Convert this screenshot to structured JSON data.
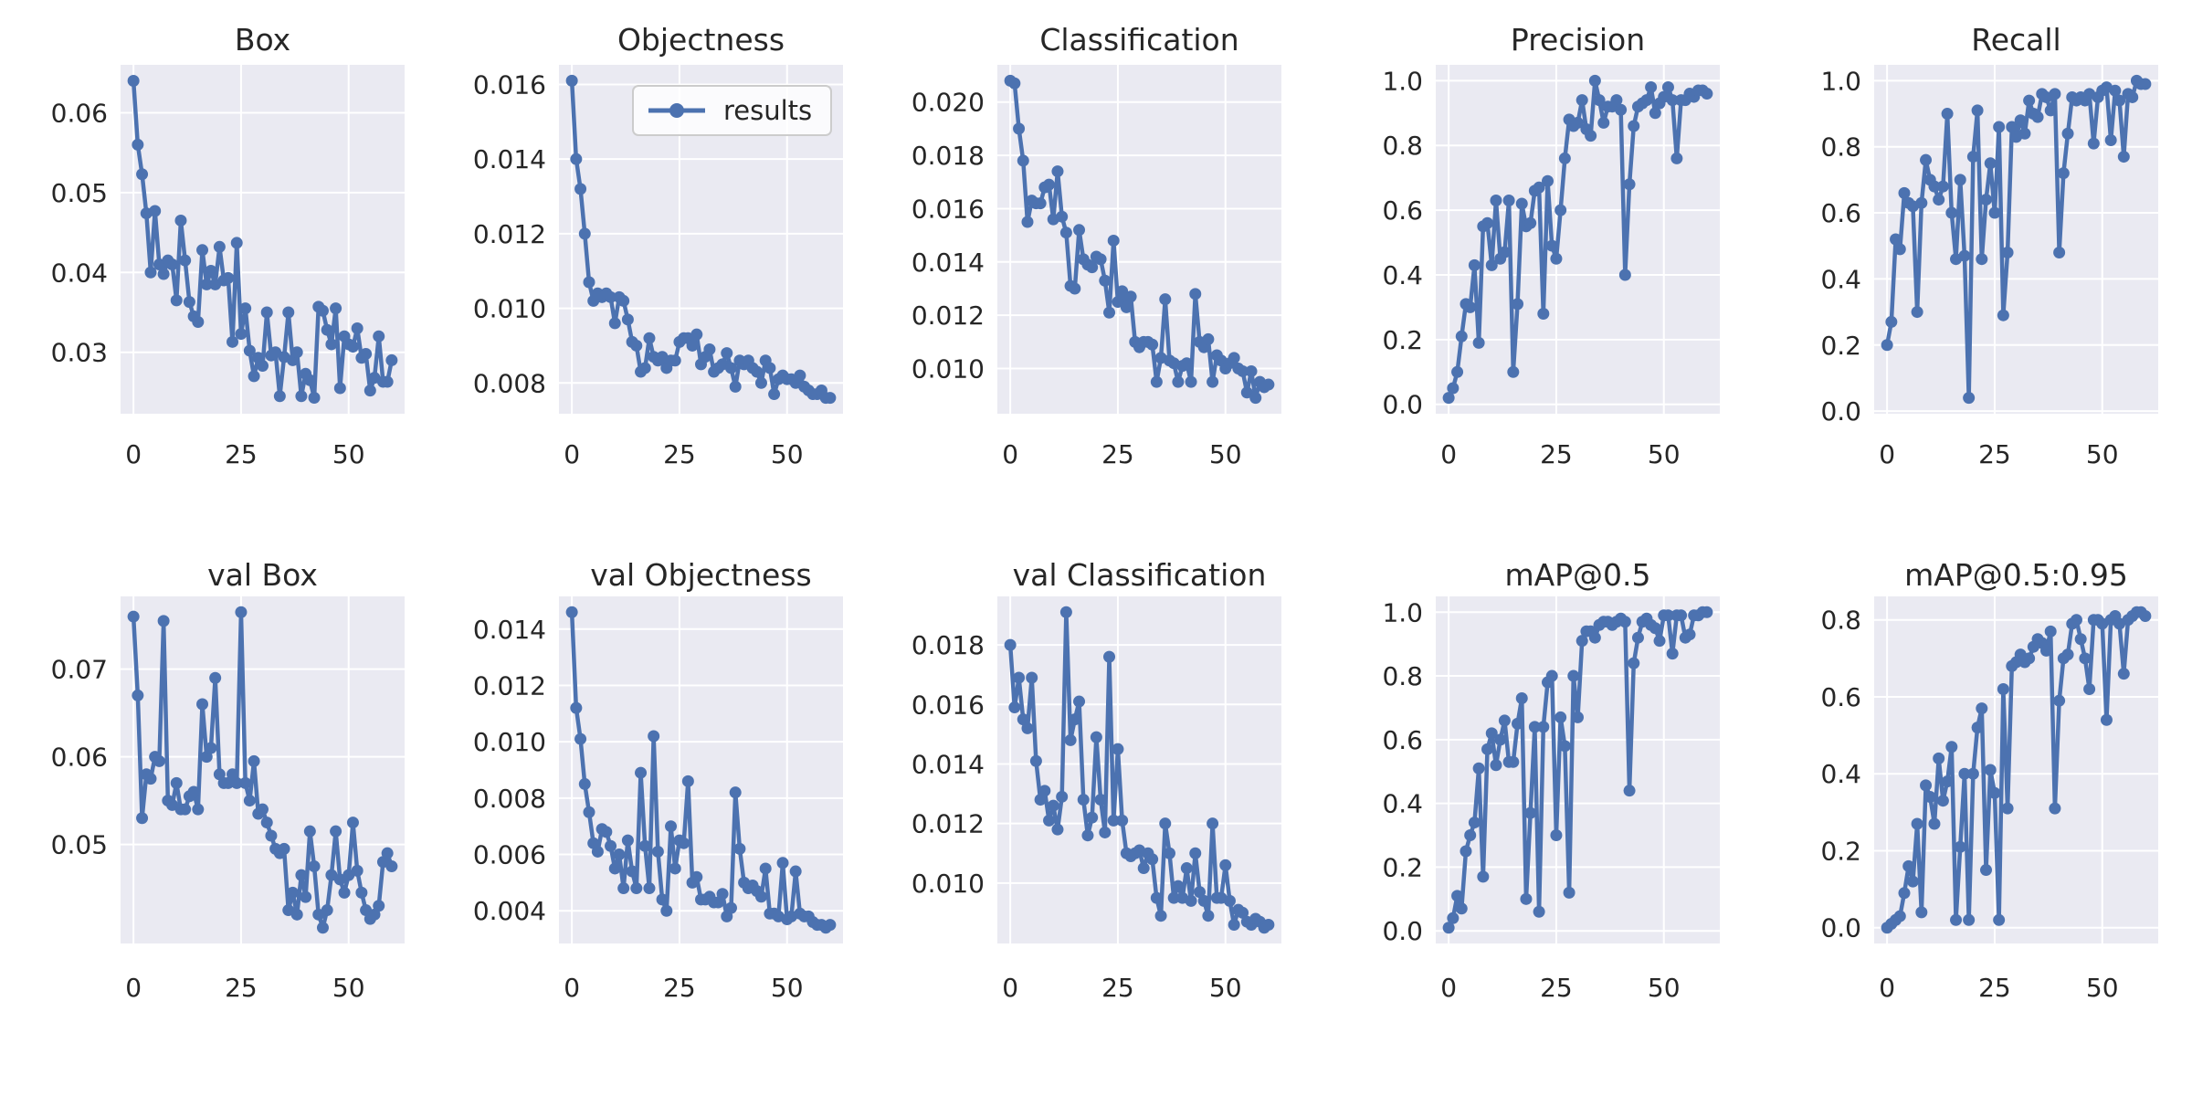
{
  "figure": {
    "legend_label": "results",
    "colors": {
      "line": "#4C72B0",
      "axes_bg": "#EAEAF2",
      "grid": "#FFFFFF",
      "text": "#262626",
      "legend_border": "#CCCCCC"
    },
    "xlim": [
      -3,
      63
    ],
    "x_ticks": [
      0,
      25,
      50
    ],
    "x_tick_labels": [
      "0",
      "25",
      "50"
    ]
  },
  "chart_data": [
    {
      "type": "line",
      "title": "Box",
      "series": "results",
      "x_start": 0,
      "x_step": 1,
      "ylim": [
        0.0223,
        0.066
      ],
      "yticks": [
        0.03,
        0.04,
        0.05,
        0.06
      ],
      "ytick_labels": [
        "0.03",
        "0.04",
        "0.05",
        "0.06"
      ],
      "values": [
        0.064,
        0.056,
        0.0523,
        0.0474,
        0.04,
        0.0477,
        0.041,
        0.0398,
        0.0415,
        0.041,
        0.0365,
        0.0465,
        0.0415,
        0.0363,
        0.0345,
        0.0338,
        0.0428,
        0.0385,
        0.0402,
        0.0385,
        0.0432,
        0.039,
        0.0393,
        0.0313,
        0.0437,
        0.0323,
        0.0355,
        0.0302,
        0.027,
        0.0293,
        0.0283,
        0.035,
        0.0296,
        0.03,
        0.0245,
        0.0294,
        0.035,
        0.029,
        0.03,
        0.0245,
        0.0273,
        0.0265,
        0.0243,
        0.0357,
        0.0352,
        0.0328,
        0.031,
        0.0355,
        0.0255,
        0.032,
        0.031,
        0.0307,
        0.033,
        0.0293,
        0.0298,
        0.0252,
        0.0268,
        0.032,
        0.0263,
        0.0263,
        0.029
      ]
    },
    {
      "type": "line",
      "title": "Objectness",
      "series": "results",
      "show_legend": true,
      "x_start": 0,
      "x_step": 1,
      "ylim": [
        0.007175,
        0.016525
      ],
      "yticks": [
        0.008,
        0.01,
        0.012,
        0.014,
        0.016
      ],
      "ytick_labels": [
        "0.008",
        "0.010",
        "0.012",
        "0.014",
        "0.016"
      ],
      "values": [
        0.0161,
        0.014,
        0.0132,
        0.012,
        0.0107,
        0.0102,
        0.0104,
        0.0103,
        0.0104,
        0.0103,
        0.0096,
        0.0103,
        0.0102,
        0.0097,
        0.0091,
        0.009,
        0.0083,
        0.0084,
        0.0092,
        0.0087,
        0.0086,
        0.0087,
        0.0084,
        0.0086,
        0.0086,
        0.0091,
        0.0092,
        0.0092,
        0.009,
        0.0093,
        0.0085,
        0.0087,
        0.0089,
        0.0083,
        0.0084,
        0.0085,
        0.0088,
        0.0084,
        0.0079,
        0.0086,
        0.0085,
        0.0086,
        0.0084,
        0.0083,
        0.008,
        0.0086,
        0.0084,
        0.0077,
        0.0081,
        0.0082,
        0.0081,
        0.0081,
        0.008,
        0.0082,
        0.0079,
        0.0078,
        0.0077,
        0.0077,
        0.0078,
        0.0076,
        0.0076
      ]
    },
    {
      "type": "line",
      "title": "Classification",
      "series": "results",
      "x_start": 0,
      "x_step": 1,
      "ylim": [
        0.008305,
        0.021395
      ],
      "yticks": [
        0.01,
        0.012,
        0.014,
        0.016,
        0.018,
        0.02
      ],
      "ytick_labels": [
        "0.010",
        "0.012",
        "0.014",
        "0.016",
        "0.018",
        "0.020"
      ],
      "values": [
        0.0208,
        0.0207,
        0.019,
        0.0178,
        0.0155,
        0.0163,
        0.0162,
        0.0162,
        0.0168,
        0.0169,
        0.0156,
        0.0174,
        0.0157,
        0.0151,
        0.0131,
        0.013,
        0.0152,
        0.0141,
        0.0139,
        0.0138,
        0.0142,
        0.0141,
        0.0133,
        0.0121,
        0.0148,
        0.0125,
        0.0129,
        0.0123,
        0.0127,
        0.011,
        0.0108,
        0.011,
        0.011,
        0.0109,
        0.0095,
        0.0104,
        0.0126,
        0.0103,
        0.0102,
        0.0095,
        0.0101,
        0.0102,
        0.0095,
        0.0128,
        0.011,
        0.0108,
        0.0111,
        0.0095,
        0.0105,
        0.0103,
        0.01,
        0.0102,
        0.0104,
        0.01,
        0.0099,
        0.0091,
        0.0099,
        0.0089,
        0.0095,
        0.0093,
        0.0094
      ]
    },
    {
      "type": "line",
      "title": "Precision",
      "series": "results",
      "x_start": 0,
      "x_step": 1,
      "ylim": [
        -0.029,
        1.049
      ],
      "yticks": [
        0.0,
        0.2,
        0.4,
        0.6,
        0.8,
        1.0
      ],
      "ytick_labels": [
        "0.0",
        "0.2",
        "0.4",
        "0.6",
        "0.8",
        "1.0"
      ],
      "values": [
        0.02,
        0.05,
        0.1,
        0.21,
        0.31,
        0.3,
        0.43,
        0.19,
        0.55,
        0.56,
        0.43,
        0.63,
        0.45,
        0.47,
        0.63,
        0.1,
        0.31,
        0.62,
        0.55,
        0.56,
        0.66,
        0.67,
        0.28,
        0.69,
        0.49,
        0.45,
        0.6,
        0.76,
        0.88,
        0.86,
        0.87,
        0.94,
        0.85,
        0.83,
        1.0,
        0.94,
        0.87,
        0.92,
        0.92,
        0.94,
        0.91,
        0.4,
        0.68,
        0.86,
        0.92,
        0.93,
        0.94,
        0.98,
        0.9,
        0.93,
        0.95,
        0.98,
        0.94,
        0.76,
        0.94,
        0.94,
        0.96,
        0.95,
        0.97,
        0.97,
        0.96
      ]
    },
    {
      "type": "line",
      "title": "Recall",
      "series": "results",
      "x_start": 0,
      "x_step": 1,
      "ylim": [
        -0.008,
        1.048
      ],
      "yticks": [
        0.0,
        0.2,
        0.4,
        0.6,
        0.8,
        1.0
      ],
      "ytick_labels": [
        "0.0",
        "0.2",
        "0.4",
        "0.6",
        "0.8",
        "1.0"
      ],
      "values": [
        0.2,
        0.27,
        0.52,
        0.49,
        0.66,
        0.63,
        0.62,
        0.3,
        0.63,
        0.76,
        0.7,
        0.68,
        0.64,
        0.68,
        0.9,
        0.6,
        0.46,
        0.7,
        0.47,
        0.04,
        0.77,
        0.91,
        0.46,
        0.64,
        0.75,
        0.6,
        0.86,
        0.29,
        0.48,
        0.86,
        0.83,
        0.88,
        0.84,
        0.94,
        0.9,
        0.89,
        0.96,
        0.95,
        0.91,
        0.96,
        0.48,
        0.72,
        0.84,
        0.95,
        0.94,
        0.95,
        0.94,
        0.96,
        0.81,
        0.95,
        0.97,
        0.98,
        0.82,
        0.97,
        0.94,
        0.77,
        0.96,
        0.95,
        1.0,
        0.99,
        0.99
      ]
    },
    {
      "type": "line",
      "title": "val Box",
      "series": "results",
      "x_start": 0,
      "x_step": 1,
      "ylim": [
        0.0387,
        0.0783
      ],
      "yticks": [
        0.05,
        0.06,
        0.07
      ],
      "ytick_labels": [
        "0.05",
        "0.06",
        "0.07"
      ],
      "values": [
        0.076,
        0.067,
        0.053,
        0.058,
        0.0575,
        0.06,
        0.0595,
        0.0755,
        0.055,
        0.0545,
        0.057,
        0.054,
        0.054,
        0.0555,
        0.056,
        0.054,
        0.066,
        0.06,
        0.061,
        0.069,
        0.058,
        0.057,
        0.057,
        0.058,
        0.057,
        0.0765,
        0.057,
        0.055,
        0.0595,
        0.0535,
        0.054,
        0.0525,
        0.051,
        0.0495,
        0.049,
        0.0495,
        0.0425,
        0.0445,
        0.042,
        0.0465,
        0.044,
        0.0515,
        0.0475,
        0.042,
        0.0405,
        0.0425,
        0.0465,
        0.0515,
        0.046,
        0.0445,
        0.0465,
        0.0525,
        0.047,
        0.0445,
        0.0425,
        0.0415,
        0.042,
        0.043,
        0.048,
        0.049,
        0.0475
      ]
    },
    {
      "type": "line",
      "title": "val Objectness",
      "series": "results",
      "x_start": 0,
      "x_step": 1,
      "ylim": [
        0.00284,
        0.01516
      ],
      "yticks": [
        0.004,
        0.006,
        0.008,
        0.01,
        0.012,
        0.014
      ],
      "ytick_labels": [
        "0.004",
        "0.006",
        "0.008",
        "0.010",
        "0.012",
        "0.014"
      ],
      "values": [
        0.0146,
        0.0112,
        0.0101,
        0.0085,
        0.0075,
        0.0064,
        0.0061,
        0.0069,
        0.0068,
        0.0063,
        0.0055,
        0.006,
        0.0048,
        0.0065,
        0.0054,
        0.0048,
        0.0089,
        0.0063,
        0.0048,
        0.0102,
        0.0061,
        0.0044,
        0.004,
        0.007,
        0.0055,
        0.0065,
        0.0064,
        0.0086,
        0.005,
        0.0052,
        0.0044,
        0.0044,
        0.0045,
        0.0043,
        0.0043,
        0.0046,
        0.0038,
        0.0041,
        0.0082,
        0.0062,
        0.005,
        0.0048,
        0.0049,
        0.0047,
        0.0045,
        0.0055,
        0.0039,
        0.0039,
        0.0038,
        0.0057,
        0.0037,
        0.0038,
        0.0054,
        0.0039,
        0.0038,
        0.0038,
        0.0036,
        0.0035,
        0.0035,
        0.0034,
        0.0035
      ]
    },
    {
      "type": "line",
      "title": "val Classification",
      "series": "results",
      "x_start": 0,
      "x_step": 1,
      "ylim": [
        0.00797,
        0.01963
      ],
      "yticks": [
        0.01,
        0.012,
        0.014,
        0.016,
        0.018
      ],
      "ytick_labels": [
        "0.010",
        "0.012",
        "0.014",
        "0.016",
        "0.018"
      ],
      "values": [
        0.018,
        0.0159,
        0.0169,
        0.0155,
        0.0152,
        0.0169,
        0.0141,
        0.0128,
        0.0131,
        0.0121,
        0.0126,
        0.0118,
        0.0129,
        0.0191,
        0.0148,
        0.0155,
        0.0161,
        0.0128,
        0.0116,
        0.0122,
        0.0149,
        0.0128,
        0.0117,
        0.0176,
        0.0121,
        0.0145,
        0.0121,
        0.011,
        0.0109,
        0.011,
        0.0111,
        0.0105,
        0.011,
        0.0108,
        0.0095,
        0.0089,
        0.012,
        0.011,
        0.0095,
        0.0099,
        0.0095,
        0.0105,
        0.0094,
        0.011,
        0.0097,
        0.0094,
        0.0089,
        0.012,
        0.0095,
        0.0095,
        0.0106,
        0.0094,
        0.0086,
        0.0091,
        0.009,
        0.0087,
        0.0086,
        0.0088,
        0.0087,
        0.0085,
        0.0086
      ]
    },
    {
      "type": "line",
      "title": "mAP@0.5",
      "series": "results",
      "x_start": 0,
      "x_step": 1,
      "ylim": [
        -0.0395,
        1.0495
      ],
      "yticks": [
        0.0,
        0.2,
        0.4,
        0.6,
        0.8,
        1.0
      ],
      "ytick_labels": [
        "0.0",
        "0.2",
        "0.4",
        "0.6",
        "0.8",
        "1.0"
      ],
      "values": [
        0.01,
        0.04,
        0.11,
        0.07,
        0.25,
        0.3,
        0.34,
        0.51,
        0.17,
        0.57,
        0.62,
        0.52,
        0.6,
        0.66,
        0.53,
        0.53,
        0.65,
        0.73,
        0.1,
        0.37,
        0.64,
        0.06,
        0.64,
        0.78,
        0.8,
        0.3,
        0.67,
        0.58,
        0.12,
        0.8,
        0.67,
        0.91,
        0.94,
        0.94,
        0.92,
        0.96,
        0.97,
        0.97,
        0.96,
        0.97,
        0.98,
        0.97,
        0.44,
        0.84,
        0.92,
        0.97,
        0.98,
        0.96,
        0.95,
        0.91,
        0.99,
        0.99,
        0.87,
        0.99,
        0.99,
        0.92,
        0.93,
        0.99,
        0.99,
        1.0,
        1.0
      ]
    },
    {
      "type": "line",
      "title": "mAP@0.5:0.95",
      "series": "results",
      "x_start": 0,
      "x_step": 1,
      "ylim": [
        -0.041,
        0.861
      ],
      "yticks": [
        0.0,
        0.2,
        0.4,
        0.6,
        0.8
      ],
      "ytick_labels": [
        "0.0",
        "0.2",
        "0.4",
        "0.6",
        "0.8"
      ],
      "values": [
        0.0,
        0.01,
        0.02,
        0.03,
        0.09,
        0.16,
        0.12,
        0.27,
        0.04,
        0.37,
        0.34,
        0.27,
        0.44,
        0.33,
        0.38,
        0.47,
        0.02,
        0.21,
        0.4,
        0.02,
        0.4,
        0.52,
        0.57,
        0.15,
        0.41,
        0.35,
        0.02,
        0.62,
        0.31,
        0.68,
        0.69,
        0.71,
        0.69,
        0.7,
        0.73,
        0.75,
        0.74,
        0.72,
        0.77,
        0.31,
        0.59,
        0.7,
        0.71,
        0.79,
        0.8,
        0.75,
        0.7,
        0.62,
        0.8,
        0.8,
        0.79,
        0.54,
        0.8,
        0.81,
        0.79,
        0.66,
        0.8,
        0.81,
        0.82,
        0.82,
        0.81
      ]
    }
  ]
}
